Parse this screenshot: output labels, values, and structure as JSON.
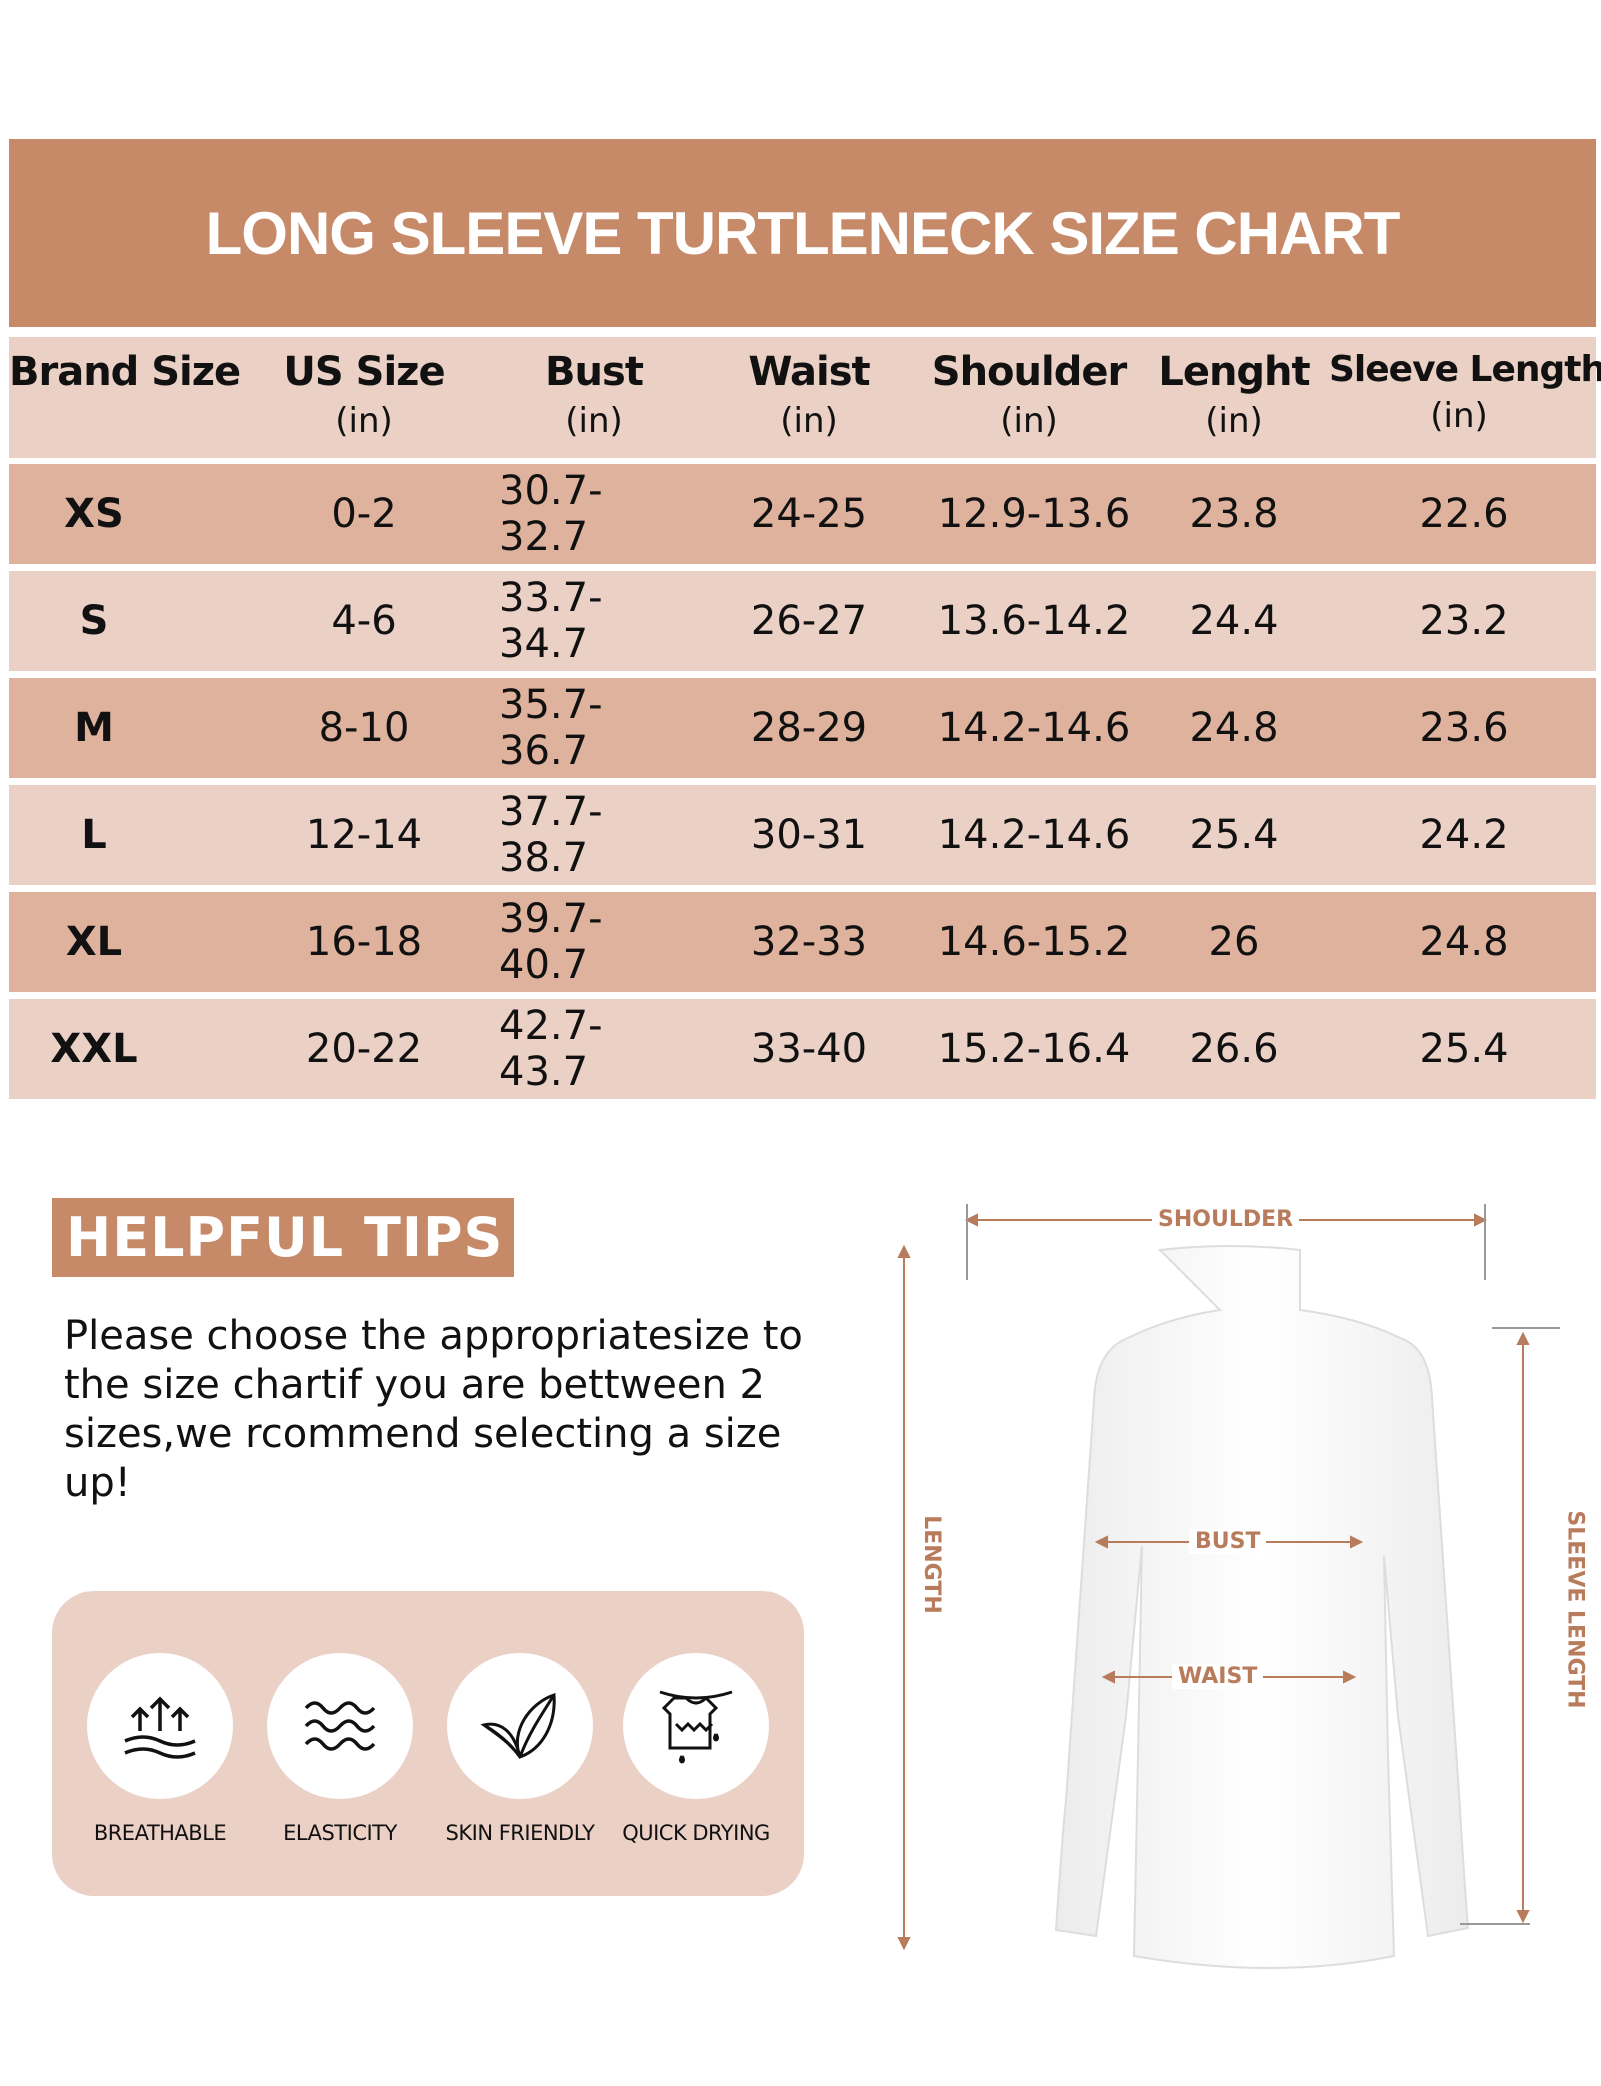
{
  "title": "LONG SLEEVE TURTLENECK SIZE CHART",
  "table": {
    "headers": [
      {
        "name": "Brand Size",
        "unit": ""
      },
      {
        "name": "US Size",
        "unit": "(in)"
      },
      {
        "name": "Bust",
        "unit": "(in)"
      },
      {
        "name": "Waist",
        "unit": "(in)"
      },
      {
        "name": "Shoulder",
        "unit": "(in)"
      },
      {
        "name": "Lenght",
        "unit": "(in)"
      },
      {
        "name": "Sleeve Length",
        "unit": "(in)"
      }
    ],
    "rows": [
      [
        "XS",
        "0-2",
        "30.7-32.7",
        "24-25",
        "12.9-13.6",
        "23.8",
        "22.6"
      ],
      [
        "S",
        "4-6",
        "33.7-34.7",
        "26-27",
        "13.6-14.2",
        "24.4",
        "23.2"
      ],
      [
        "M",
        "8-10",
        "35.7-36.7",
        "28-29",
        "14.2-14.6",
        "24.8",
        "23.6"
      ],
      [
        "L",
        "12-14",
        "37.7-38.7",
        "30-31",
        "14.2-14.6",
        "25.4",
        "24.2"
      ],
      [
        "XL",
        "16-18",
        "39.7-40.7",
        "32-33",
        "14.6-15.2",
        "26",
        "24.8"
      ],
      [
        "XXL",
        "20-22",
        "42.7-43.7",
        "33-40",
        "15.2-16.4",
        "26.6",
        "25.4"
      ]
    ]
  },
  "tips": {
    "heading": "HELPFUL TIPS",
    "text": "Please choose the appropriatesize to the size chartif you are bettween 2 sizes,we rcommend selecting a size up!"
  },
  "features": [
    {
      "label": "BREATHABLE",
      "icon": "breathable-icon"
    },
    {
      "label": "ELASTICITY",
      "icon": "elasticity-icon"
    },
    {
      "label": "SKIN FRIENDLY",
      "icon": "leaf-icon"
    },
    {
      "label": "QUICK DRYING",
      "icon": "quick-drying-icon"
    }
  ],
  "diagram": {
    "shoulder": "SHOULDER",
    "length": "LENGTH",
    "sleeve_length": "SLEEVE LENGTH",
    "bust": "BUST",
    "waist": "WAIST"
  },
  "colors": {
    "title_band": "#C78A69",
    "row_dark": "#DEB29C",
    "row_light": "#EBD0C6",
    "dimension_label": "#B87B5B"
  }
}
